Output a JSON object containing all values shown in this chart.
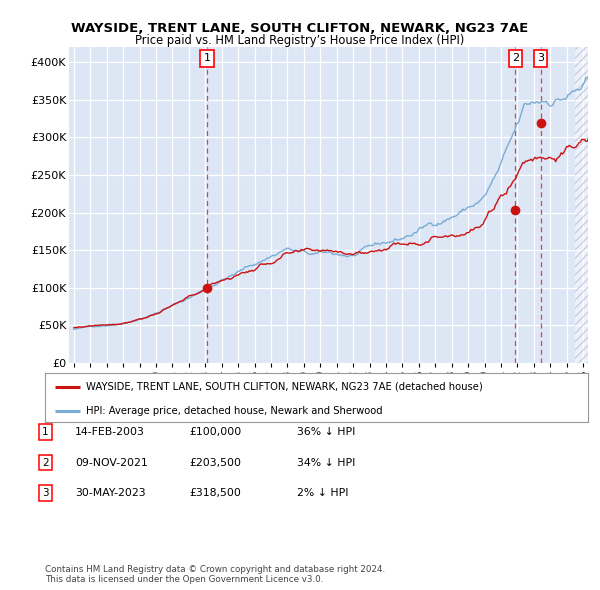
{
  "title": "WAYSIDE, TRENT LANE, SOUTH CLIFTON, NEWARK, NG23 7AE",
  "subtitle": "Price paid vs. HM Land Registry’s House Price Index (HPI)",
  "ylim": [
    0,
    420000
  ],
  "xlim_start": 1994.7,
  "xlim_end": 2026.3,
  "yticks": [
    0,
    50000,
    100000,
    150000,
    200000,
    250000,
    300000,
    350000,
    400000
  ],
  "ytick_labels": [
    "£0",
    "£50K",
    "£100K",
    "£150K",
    "£200K",
    "£250K",
    "£300K",
    "£350K",
    "£400K"
  ],
  "background_color": "#ffffff",
  "plot_bg_color": "#dce6f5",
  "grid_color": "#ffffff",
  "hpi_color": "#7aadd4",
  "sale_color": "#cc1111",
  "vline_color": "#dd4444",
  "transactions": [
    {
      "label": "1",
      "date": 2003.1,
      "price": 100000
    },
    {
      "label": "2",
      "date": 2021.87,
      "price": 203500
    },
    {
      "label": "3",
      "date": 2023.42,
      "price": 318500
    }
  ],
  "legend_sale_label": "WAYSIDE, TRENT LANE, SOUTH CLIFTON, NEWARK, NG23 7AE (detached house)",
  "legend_hpi_label": "HPI: Average price, detached house, Newark and Sherwood",
  "table_rows": [
    {
      "num": "1",
      "date": "14-FEB-2003",
      "price": "£100,000",
      "pct": "36% ↓ HPI"
    },
    {
      "num": "2",
      "date": "09-NOV-2021",
      "price": "£203,500",
      "pct": "34% ↓ HPI"
    },
    {
      "num": "3",
      "date": "30-MAY-2023",
      "price": "£318,500",
      "pct": "2% ↓ HPI"
    }
  ],
  "footnote": "Contains HM Land Registry data © Crown copyright and database right 2024.\nThis data is licensed under the Open Government Licence v3.0.",
  "hatch_start": 2025.5
}
